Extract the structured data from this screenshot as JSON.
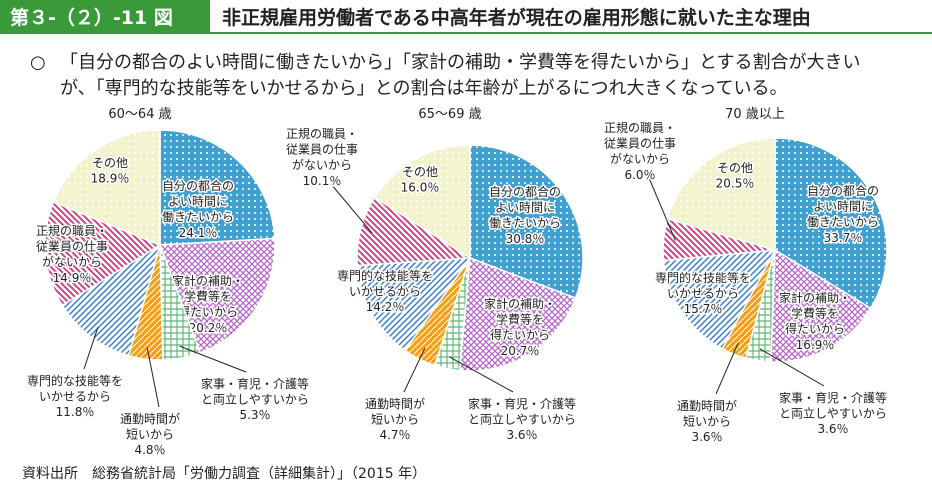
{
  "figure_number": "第３-（２）-11 図",
  "title": "非正規雇用労働者である中高年者が現在の雇用形態に就いた主な理由",
  "summary": [
    "○",
    "「自分の都合のよい時間に働きたいから」「家計の補助・学費等を得たいから」とする割合が大きい",
    "が、「専門的な技能等をいかせるから」との割合は年齢が上がるにつれ大きくなっている。"
  ],
  "source": "資料出所　総務省統計局「労働力調査（詳細集計）」（2015 年）",
  "chart_data": [
    {
      "type": "pie",
      "title": "60～64 歳",
      "categories": [
        "自分の都合の\nよい時間に\n働きたいから",
        "家計の補助・\n学費等を\n得たいから",
        "家事・育児・介護等\nと両立しやすいから",
        "通勤時間が\n短いから",
        "専門的な技能等を\nいかせるから",
        "正規の職員・\n従業員の仕事\nがないから",
        "その他"
      ],
      "values": [
        24.1,
        20.2,
        5.3,
        4.8,
        11.8,
        14.9,
        18.9
      ],
      "value_labels": [
        "24.1％",
        "20.2％",
        "5.3％",
        "4.8％",
        "11.8％",
        "14.9％",
        "18.9％"
      ],
      "colors": [
        "#1e8fc8",
        "#b467c8",
        "#5fb878",
        "#f0a020",
        "#3a7fc8",
        "#d8407f",
        "#d8d870"
      ]
    },
    {
      "type": "pie",
      "title": "65～69 歳",
      "categories": [
        "自分の都合の\nよい時間に\n働きたいから",
        "家計の補助・\n学費等を\n得たいから",
        "家事・育児・介護等\nと両立しやすいから",
        "通勤時間が\n短いから",
        "専門的な技能等を\nいかせるから",
        "正規の職員・\n従業員の仕事\nがないから",
        "その他"
      ],
      "values": [
        30.8,
        20.7,
        3.6,
        4.7,
        14.2,
        10.1,
        16.0
      ],
      "value_labels": [
        "30.8％",
        "20.7％",
        "3.6％",
        "4.7％",
        "14.2％",
        "10.1％",
        "16.0％"
      ],
      "colors": [
        "#1e8fc8",
        "#b467c8",
        "#5fb878",
        "#f0a020",
        "#3a7fc8",
        "#d8407f",
        "#d8d870"
      ]
    },
    {
      "type": "pie",
      "title": "70 歳以上",
      "categories": [
        "自分の都合の\nよい時間に\n働きたいから",
        "家計の補助・\n学費等を\n得たいから",
        "家事・育児・介護等\nと両立しやすいから",
        "通勤時間が\n短いから",
        "専門的な技能等を\nいかせるから",
        "正規の職員・\n従業員の仕事\nがないから",
        "その他"
      ],
      "values": [
        33.7,
        16.9,
        3.6,
        3.6,
        15.7,
        6.0,
        20.5
      ],
      "value_labels": [
        "33.7％",
        "16.9％",
        "3.6％",
        "3.6％",
        "15.7％",
        "6.0％",
        "20.5％"
      ],
      "colors": [
        "#1e8fc8",
        "#b467c8",
        "#5fb878",
        "#f0a020",
        "#3a7fc8",
        "#d8407f",
        "#d8d870"
      ]
    }
  ]
}
